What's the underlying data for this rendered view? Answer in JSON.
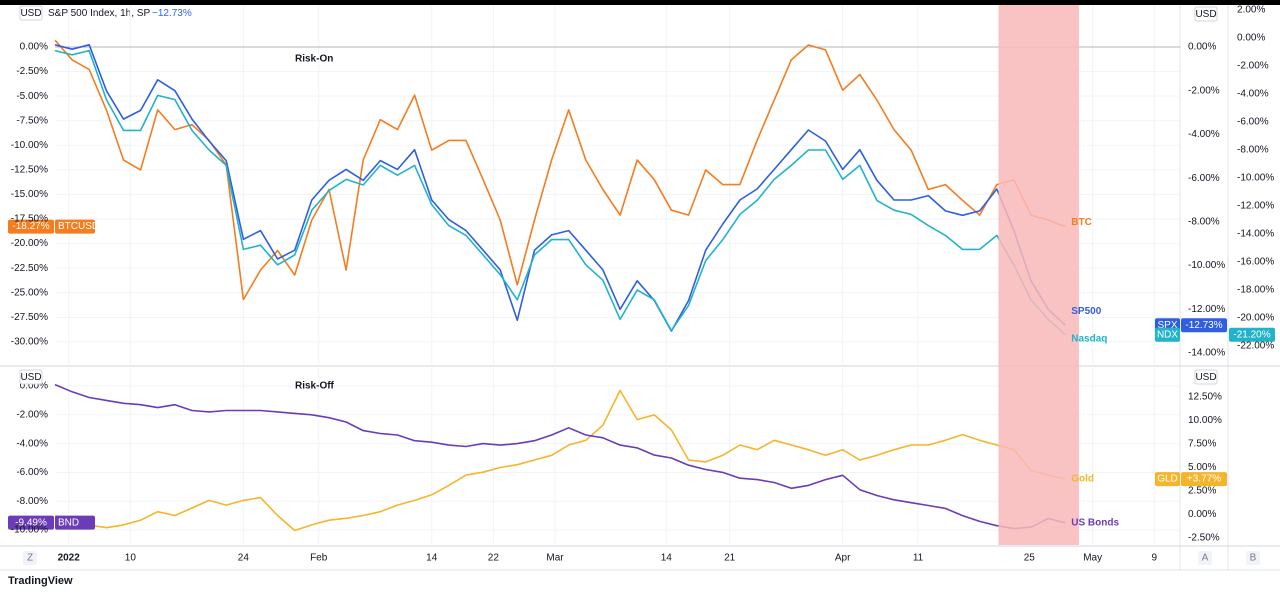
{
  "header": {
    "currency": "USD",
    "symbol": "S&P 500 Index, 1h, SP",
    "change": "−12.73%"
  },
  "footer": {
    "brand": "TradingView",
    "buttons": [
      "Z",
      "A",
      "B"
    ]
  },
  "chart_data": {
    "type": "line",
    "xlim": [
      0,
      65.7
    ],
    "xticks": [
      {
        "value": 0.8,
        "label": "2022"
      },
      {
        "value": 4.4,
        "label": "10"
      },
      {
        "value": 11.0,
        "label": "24"
      },
      {
        "value": 15.4,
        "label": "Feb"
      },
      {
        "value": 22.0,
        "label": "14"
      },
      {
        "value": 25.6,
        "label": "22"
      },
      {
        "value": 29.2,
        "label": "Mar"
      },
      {
        "value": 35.7,
        "label": "14"
      },
      {
        "value": 39.4,
        "label": "21"
      },
      {
        "value": 46.0,
        "label": "Apr"
      },
      {
        "value": 50.4,
        "label": "11"
      },
      {
        "value": 56.9,
        "label": "25"
      },
      {
        "value": 60.6,
        "label": "May"
      },
      {
        "value": 64.2,
        "label": "9"
      }
    ],
    "highlight": [
      55.1,
      59.8
    ],
    "grid": true,
    "panes": [
      {
        "annotation": "Risk-On",
        "ylim": [
          -32.35,
          4.27
        ],
        "yticks": [
          {
            "value": 0,
            "label": "0.00%"
          },
          {
            "value": -2.5,
            "label": "-2.50%"
          },
          {
            "value": -5,
            "label": "-5.00%"
          },
          {
            "value": -7.5,
            "label": "-7.50%"
          },
          {
            "value": -10,
            "label": "-10.00%"
          },
          {
            "value": -12.5,
            "label": "-12.50%"
          },
          {
            "value": -15,
            "label": "-15.00%"
          },
          {
            "value": -17.5,
            "label": "-17.50%"
          },
          {
            "value": -20,
            "label": "-20.00%"
          },
          {
            "value": -22.5,
            "label": "-22.50%"
          },
          {
            "value": -25,
            "label": "-25.00%"
          },
          {
            "value": -27.5,
            "label": "-27.50%"
          },
          {
            "value": -30,
            "label": "-30.00%"
          }
        ],
        "y2lim": [
          -14.55,
          1.92
        ],
        "y2ticks": [
          {
            "value": 0,
            "label": "0.00%"
          },
          {
            "value": -2,
            "label": "-2.00%"
          },
          {
            "value": -4,
            "label": "-4.00%"
          },
          {
            "value": -6,
            "label": "-6.00%"
          },
          {
            "value": -8,
            "label": "-8.00%"
          },
          {
            "value": -10,
            "label": "-10.00%"
          },
          {
            "value": -12,
            "label": "-12.00%"
          },
          {
            "value": -14,
            "label": "-14.00%"
          }
        ],
        "y2_label": "USD",
        "y3lim": [
          -23.36,
          2.36
        ],
        "y3ticks": [
          {
            "value": 2,
            "label": "2.00%"
          },
          {
            "value": 0,
            "label": "0.00%"
          },
          {
            "value": -2,
            "label": "-2.00%"
          },
          {
            "value": -4,
            "label": "-4.00%"
          },
          {
            "value": -6,
            "label": "-6.00%"
          },
          {
            "value": -8,
            "label": "-8.00%"
          },
          {
            "value": -10,
            "label": "-10.00%"
          },
          {
            "value": -12,
            "label": "-12.00%"
          },
          {
            "value": -14,
            "label": "-14.00%"
          },
          {
            "value": -16,
            "label": "-16.00%"
          },
          {
            "value": -18,
            "label": "-18.00%"
          },
          {
            "value": -20,
            "label": "-20.00%"
          },
          {
            "value": -22,
            "label": "-22.00%"
          }
        ],
        "series": [
          {
            "name": "BTC",
            "symbol": "BTCUSD",
            "color": "#f57c1f",
            "axis": "y",
            "last_label": "-18.27%",
            "values": [
              0.7,
              -1.3,
              -2.3,
              -6.4,
              -11.5,
              -12.5,
              -6.4,
              -8.4,
              -7.9,
              -9.5,
              -12.0,
              -25.7,
              -22.7,
              -20.7,
              -23.2,
              -17.6,
              -14.5,
              -22.7,
              -11.5,
              -7.4,
              -8.4,
              -4.9,
              -10.5,
              -9.5,
              -9.5,
              -13.5,
              -17.6,
              -24.2,
              -17.6,
              -11.5,
              -6.4,
              -11.5,
              -14.5,
              -17.1,
              -11.5,
              -13.5,
              -16.6,
              -17.1,
              -12.5,
              -14.0,
              -14.0,
              -9.5,
              -5.4,
              -1.3,
              0.2,
              -0.3,
              -4.4,
              -2.8,
              -5.4,
              -8.4,
              -10.5,
              -14.5,
              -14.0,
              -15.6,
              -17.1,
              -14.0,
              -13.5,
              -17.1,
              -17.6,
              -18.27
            ]
          },
          {
            "name": "SP500",
            "symbol": "SPX",
            "color": "#2f5fe0",
            "axis": "y2",
            "last_label": "-12.73%",
            "values": [
              0.1,
              -0.1,
              0.1,
              -2.0,
              -3.3,
              -2.9,
              -1.5,
              -2.0,
              -3.3,
              -4.3,
              -5.2,
              -8.8,
              -8.4,
              -9.7,
              -9.3,
              -7.0,
              -6.1,
              -5.6,
              -6.1,
              -5.2,
              -5.6,
              -4.7,
              -7.0,
              -7.9,
              -8.4,
              -9.3,
              -10.2,
              -12.5,
              -9.3,
              -8.6,
              -8.4,
              -9.3,
              -10.2,
              -12.0,
              -10.7,
              -11.6,
              -13.0,
              -11.6,
              -9.3,
              -8.1,
              -7.0,
              -6.5,
              -5.6,
              -4.7,
              -3.8,
              -4.3,
              -5.6,
              -4.7,
              -6.1,
              -7.0,
              -7.0,
              -6.8,
              -7.5,
              -7.7,
              -7.5,
              -6.5,
              -8.4,
              -10.7,
              -12.0,
              -12.73
            ]
          },
          {
            "name": "Nasdaq",
            "symbol": "NDX",
            "color": "#22b3c8",
            "axis": "y3",
            "last_label": "-21.20%",
            "values": [
              -0.9,
              -1.2,
              -0.9,
              -4.4,
              -6.6,
              -6.6,
              -4.1,
              -4.4,
              -6.6,
              -8.0,
              -9.1,
              -15.1,
              -14.8,
              -16.2,
              -15.5,
              -12.3,
              -10.9,
              -10.1,
              -10.5,
              -9.1,
              -9.8,
              -9.1,
              -11.9,
              -13.4,
              -14.1,
              -15.5,
              -16.9,
              -18.7,
              -15.5,
              -14.4,
              -14.4,
              -16.2,
              -17.3,
              -20.1,
              -18.0,
              -18.7,
              -20.9,
              -19.1,
              -15.9,
              -14.4,
              -12.6,
              -11.6,
              -10.1,
              -9.1,
              -8.0,
              -8.0,
              -10.1,
              -9.1,
              -11.6,
              -12.3,
              -12.6,
              -13.4,
              -14.1,
              -15.1,
              -15.1,
              -14.1,
              -16.2,
              -18.7,
              -20.1,
              -21.2
            ]
          }
        ]
      },
      {
        "annotation": "Risk-Off",
        "ylim": [
          -11.04,
          1.25
        ],
        "yticks": [
          {
            "value": 0,
            "label": "0.00%"
          },
          {
            "value": -2,
            "label": "-2.00%"
          },
          {
            "value": -4,
            "label": "-4.00%"
          },
          {
            "value": -6,
            "label": "-6.00%"
          },
          {
            "value": -8,
            "label": "-8.00%"
          },
          {
            "value": -10,
            "label": "-10.00%"
          }
        ],
        "y_label": "USD",
        "y2lim": [
          -3.24,
          15.59
        ],
        "y2ticks": [
          {
            "value": 12.5,
            "label": "12.50%"
          },
          {
            "value": 10,
            "label": "10.00%"
          },
          {
            "value": 7.5,
            "label": "7.50%"
          },
          {
            "value": 5,
            "label": "5.00%"
          },
          {
            "value": 2.5,
            "label": "2.50%"
          },
          {
            "value": 0,
            "label": "0.00%"
          },
          {
            "value": -2.5,
            "label": "-2.50%"
          }
        ],
        "y2_label": "USD",
        "series": [
          {
            "name": "Gold",
            "symbol": "GLD",
            "color": "#f5b52a",
            "axis": "y2",
            "last_label": "+3.77%",
            "values": [
              -0.1,
              -1.1,
              -1.1,
              -1.4,
              -1.1,
              -0.6,
              0.3,
              -0.1,
              0.7,
              1.5,
              1.0,
              1.5,
              1.8,
              -0.1,
              -1.7,
              -1.1,
              -0.6,
              -0.4,
              -0.1,
              0.3,
              1.0,
              1.5,
              2.1,
              3.1,
              4.2,
              4.5,
              5.0,
              5.3,
              5.8,
              6.3,
              7.4,
              7.9,
              9.5,
              13.2,
              10.1,
              10.6,
              9.0,
              5.8,
              5.6,
              6.3,
              7.4,
              6.9,
              7.9,
              7.4,
              6.9,
              6.3,
              6.9,
              5.8,
              6.3,
              6.9,
              7.4,
              7.4,
              7.9,
              8.5,
              7.9,
              7.4,
              6.9,
              4.7,
              4.2,
              3.77
            ]
          },
          {
            "name": "US Bonds",
            "symbol": "BND",
            "color": "#6a3cb8",
            "axis": "y",
            "last_label": "-9.49%",
            "values": [
              0.1,
              -0.4,
              -0.8,
              -1.0,
              -1.2,
              -1.3,
              -1.5,
              -1.3,
              -1.7,
              -1.8,
              -1.7,
              -1.7,
              -1.7,
              -1.8,
              -1.9,
              -2.0,
              -2.2,
              -2.5,
              -3.1,
              -3.3,
              -3.4,
              -3.8,
              -3.9,
              -4.1,
              -4.2,
              -4.0,
              -4.1,
              -4.0,
              -3.8,
              -3.4,
              -2.9,
              -3.4,
              -3.6,
              -4.1,
              -4.3,
              -4.8,
              -5.0,
              -5.5,
              -5.8,
              -6.0,
              -6.4,
              -6.5,
              -6.7,
              -7.1,
              -6.9,
              -6.5,
              -6.2,
              -7.2,
              -7.6,
              -7.9,
              -8.1,
              -8.3,
              -8.5,
              -9.0,
              -9.4,
              -9.7,
              -9.9,
              -9.8,
              -9.2,
              -9.49
            ]
          }
        ]
      }
    ]
  }
}
